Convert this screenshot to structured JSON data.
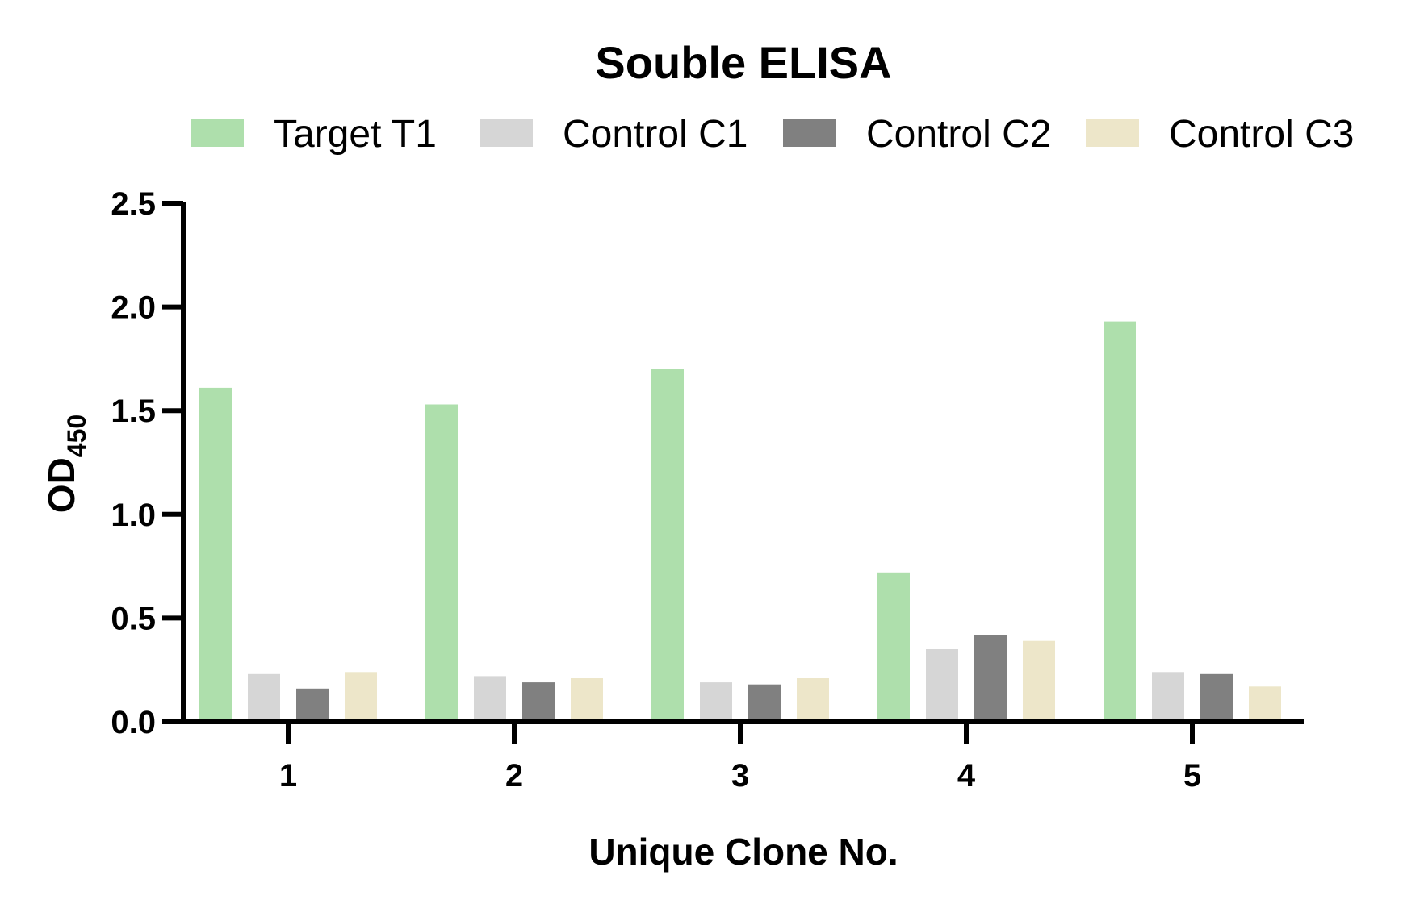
{
  "chart_data": {
    "type": "bar",
    "title": "Souble ELISA",
    "xlabel": "Unique Clone No.",
    "ylabel": "OD",
    "ylabel_subscript": "450",
    "categories": [
      "1",
      "2",
      "3",
      "4",
      "5"
    ],
    "ylim": [
      0,
      2.5
    ],
    "yticks": [
      "0.0",
      "0.5",
      "1.0",
      "1.5",
      "2.0",
      "2.5"
    ],
    "ytick_values": [
      0,
      0.5,
      1.0,
      1.5,
      2.0,
      2.5
    ],
    "grid": false,
    "legend_position": "top",
    "series": [
      {
        "name": "Target T1",
        "color": "#aedfac",
        "values": [
          1.61,
          1.53,
          1.7,
          0.72,
          1.93
        ]
      },
      {
        "name": "Control C1",
        "color": "#d6d6d6",
        "values": [
          0.23,
          0.22,
          0.19,
          0.35,
          0.24
        ]
      },
      {
        "name": "Control C2",
        "color": "#808080",
        "values": [
          0.16,
          0.19,
          0.18,
          0.42,
          0.23
        ]
      },
      {
        "name": "Control C3",
        "color": "#ede6c9",
        "values": [
          0.24,
          0.21,
          0.21,
          0.39,
          0.17
        ]
      }
    ]
  }
}
